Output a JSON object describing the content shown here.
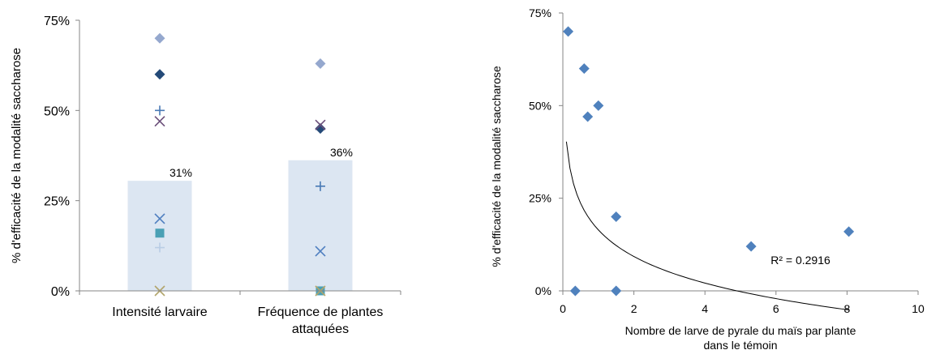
{
  "colors": {
    "bar": "#dce6f2",
    "axis": "#868686",
    "diamond_light": "#95a8ce",
    "diamond_dark": "#244a78",
    "plus": "#4a7ab5",
    "x_purple": "#6b4f7a",
    "x_blue": "#4f7fc0",
    "square": "#4aa0b5",
    "plus_light": "#b9cde5",
    "x_light": "#b2a56c",
    "scatter": "#4f81bd",
    "trend": "#000000"
  },
  "chart_data": [
    {
      "type": "bar",
      "categories": [
        "Intensité larvaire",
        "Fréquence de plantes attaquées"
      ],
      "category_lines": [
        [
          "Intensité larvaire"
        ],
        [
          "Fréquence de plantes",
          "attaquées"
        ]
      ],
      "values": [
        0.305,
        0.362
      ],
      "data_labels": [
        "31%",
        "36%"
      ],
      "ylabel": "% d'efficacité de la modalité saccharose",
      "ylim": [
        0,
        0.75
      ],
      "yticks": [
        0,
        0.25,
        0.5,
        0.75
      ],
      "ytick_labels": [
        "0%",
        "25%",
        "50%",
        "75%"
      ],
      "grid": false,
      "overlay_points": [
        {
          "category": 0,
          "value": 0.7,
          "marker": "diamond",
          "color": "#95a8ce"
        },
        {
          "category": 0,
          "value": 0.6,
          "marker": "diamond",
          "color": "#244a78"
        },
        {
          "category": 0,
          "value": 0.5,
          "marker": "plus",
          "color": "#4a7ab5"
        },
        {
          "category": 0,
          "value": 0.47,
          "marker": "x",
          "color": "#6b4f7a"
        },
        {
          "category": 0,
          "value": 0.2,
          "marker": "x",
          "color": "#4f7fc0"
        },
        {
          "category": 0,
          "value": 0.16,
          "marker": "square",
          "color": "#4aa0b5"
        },
        {
          "category": 0,
          "value": 0.12,
          "marker": "plus",
          "color": "#b9cde5"
        },
        {
          "category": 0,
          "value": 0.0,
          "marker": "x",
          "color": "#b2a56c"
        },
        {
          "category": 1,
          "value": 0.63,
          "marker": "diamond",
          "color": "#95a8ce"
        },
        {
          "category": 1,
          "value": 0.45,
          "marker": "diamond",
          "color": "#244a78"
        },
        {
          "category": 1,
          "value": 0.46,
          "marker": "x",
          "color": "#6b4f7a"
        },
        {
          "category": 1,
          "value": 0.29,
          "marker": "plus",
          "color": "#4a7ab5"
        },
        {
          "category": 1,
          "value": 0.11,
          "marker": "x",
          "color": "#4f7fc0"
        },
        {
          "category": 1,
          "value": 0.0,
          "marker": "square",
          "color": "#4aa0b5"
        },
        {
          "category": 1,
          "value": 0.0,
          "marker": "x",
          "color": "#b2a56c"
        }
      ]
    },
    {
      "type": "scatter",
      "x": [
        0.15,
        0.6,
        0.7,
        0.35,
        1.0,
        1.5,
        1.5,
        5.3,
        8.05
      ],
      "y": [
        0.7,
        0.6,
        0.47,
        0.0,
        0.5,
        0.2,
        0.0,
        0.12,
        0.16
      ],
      "xlabel_lines": [
        "Nombre de larve de pyrale du maïs par plante",
        "dans le témoin"
      ],
      "ylabel": "% d'efficacité de la modalité saccharose",
      "xlim": [
        0,
        10
      ],
      "xticks": [
        0,
        2,
        4,
        6,
        8,
        10
      ],
      "xtick_labels": [
        "0",
        "2",
        "4",
        "6",
        "8",
        "10"
      ],
      "ylim": [
        0,
        0.75
      ],
      "yticks": [
        0,
        0.25,
        0.5,
        0.75
      ],
      "ytick_labels": [
        "0%",
        "25%",
        "50%",
        "75%"
      ],
      "grid": false,
      "trendline": {
        "type": "log",
        "a": 0.1645,
        "b": -0.1035,
        "x_start": 0.1,
        "x_end": 8.05
      },
      "annotation": "R² = 0.2916"
    }
  ]
}
